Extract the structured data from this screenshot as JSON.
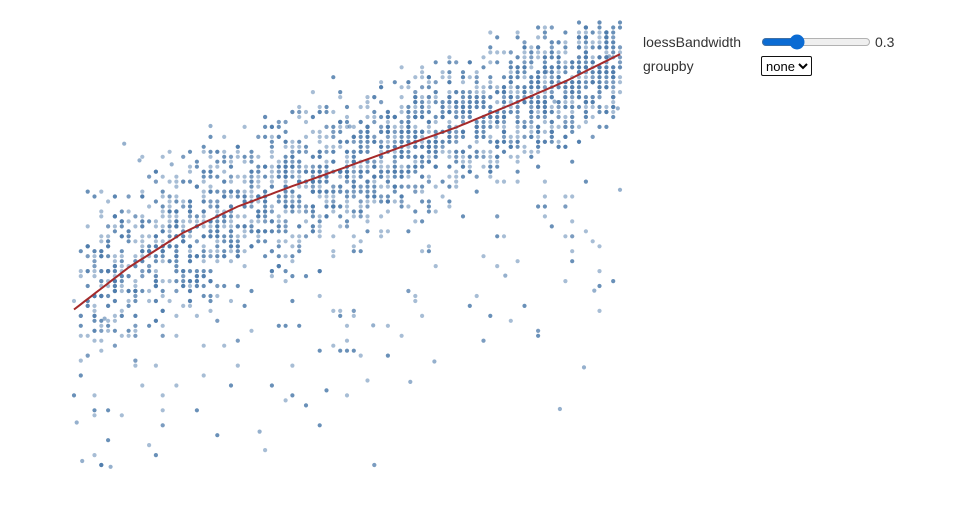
{
  "controls": {
    "bandwidth_label": "loessBandwidth",
    "bandwidth_value": "0.3",
    "bandwidth_fraction": 0.3,
    "groupby_label": "groupby",
    "groupby_selected": "none"
  },
  "colors": {
    "points": "#4f7cac",
    "loess": "#a52a2a",
    "accent": "#0b6bd3"
  },
  "chart_data": {
    "type": "scatter",
    "title": "",
    "xlabel": "",
    "ylabel": "",
    "axes_shown": false,
    "grid": false,
    "xlim": [
      0,
      100
    ],
    "ylim": [
      0,
      100
    ],
    "approx_point_count": 2600,
    "trend": {
      "name": "loess",
      "x": [
        0,
        10,
        20,
        30,
        40,
        50,
        60,
        70,
        80,
        90,
        100
      ],
      "y": [
        35.5,
        44.8,
        52.5,
        58.3,
        62.8,
        67.1,
        71.5,
        75.8,
        80.8,
        86.0,
        92.0
      ]
    },
    "points_sample": [
      {
        "x": 0.5,
        "y": 10.5
      },
      {
        "x": 1.5,
        "y": 2.0
      },
      {
        "x": 6.7,
        "y": 0.7
      },
      {
        "x": 5.6,
        "y": 33.5
      },
      {
        "x": 9.2,
        "y": 72.2
      },
      {
        "x": 12.0,
        "y": 68.5
      },
      {
        "x": 17.9,
        "y": 67.6
      },
      {
        "x": 25.0,
        "y": 76.1
      },
      {
        "x": 34.0,
        "y": 8.5
      },
      {
        "x": 50.5,
        "y": 76.0
      },
      {
        "x": 54.8,
        "y": 32.0
      },
      {
        "x": 61.6,
        "y": 19.5
      },
      {
        "x": 66.0,
        "y": 24.0
      },
      {
        "x": 79.0,
        "y": 43.0
      },
      {
        "x": 86.5,
        "y": 88.1
      },
      {
        "x": 88.0,
        "y": 81.5
      },
      {
        "x": 89.0,
        "y": 13.5
      },
      {
        "x": 93.4,
        "y": 22.7
      },
      {
        "x": 95.3,
        "y": 39.7
      },
      {
        "x": 98.0,
        "y": 91.5
      },
      {
        "x": 99.6,
        "y": 80.0
      },
      {
        "x": 100.0,
        "y": 62.0
      }
    ]
  }
}
